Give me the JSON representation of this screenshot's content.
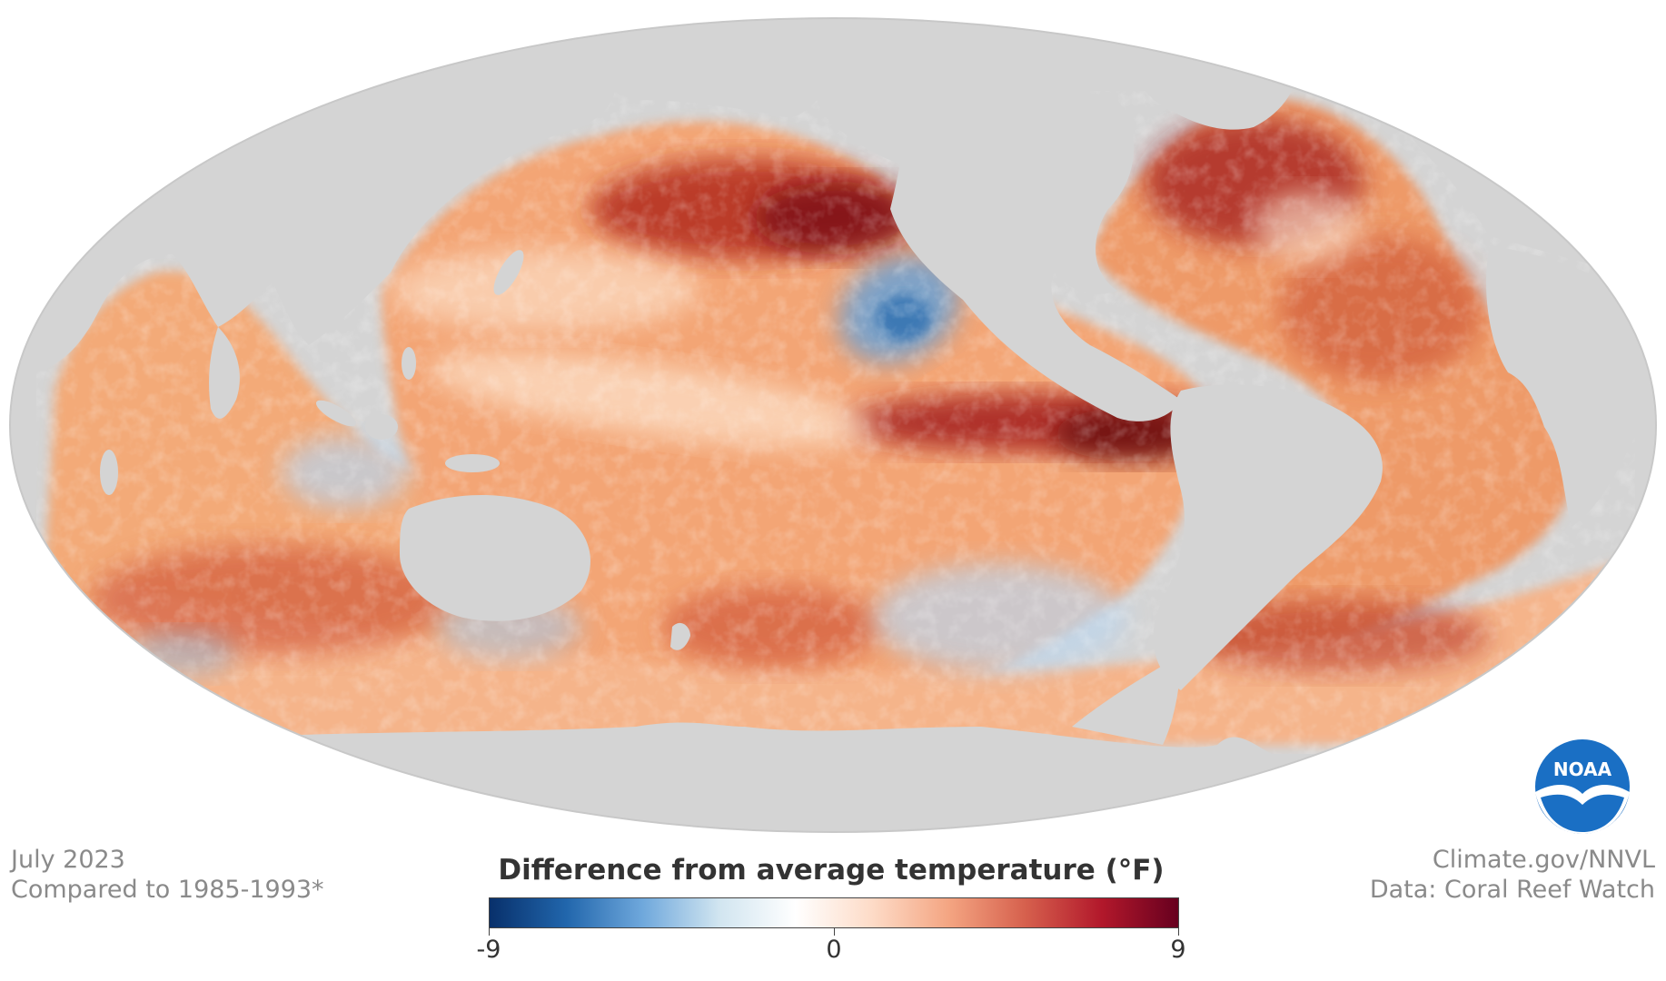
{
  "map": {
    "projection": "mollweide",
    "land_color": "#d4d4d4",
    "ocean_colors": {
      "strong_cool": "#2c6cad",
      "cool": "#a6c8e8",
      "neutral": "#fdf5ec",
      "warm": "#f6b47f",
      "hot": "#e07141",
      "very_hot": "#a31c1c",
      "extreme": "#6b0b0b"
    }
  },
  "notes": {
    "date": "July 2023",
    "baseline": "Compared to 1985-1993*",
    "site": "Climate.gov/NNVL",
    "source": "Data: Coral Reef Watch"
  },
  "legend": {
    "title": "Difference from average temperature (°F)",
    "min_label": "-9",
    "mid_label": "0",
    "max_label": "9",
    "colors": [
      "#08306b",
      "#2166ac",
      "#6fa8dc",
      "#d1e5f0",
      "#ffffff",
      "#fddbc7",
      "#f4a582",
      "#d6604d",
      "#b2182b",
      "#67001f"
    ]
  },
  "logo": {
    "text": "NOAA",
    "icon": "noaa-seagull-icon"
  }
}
